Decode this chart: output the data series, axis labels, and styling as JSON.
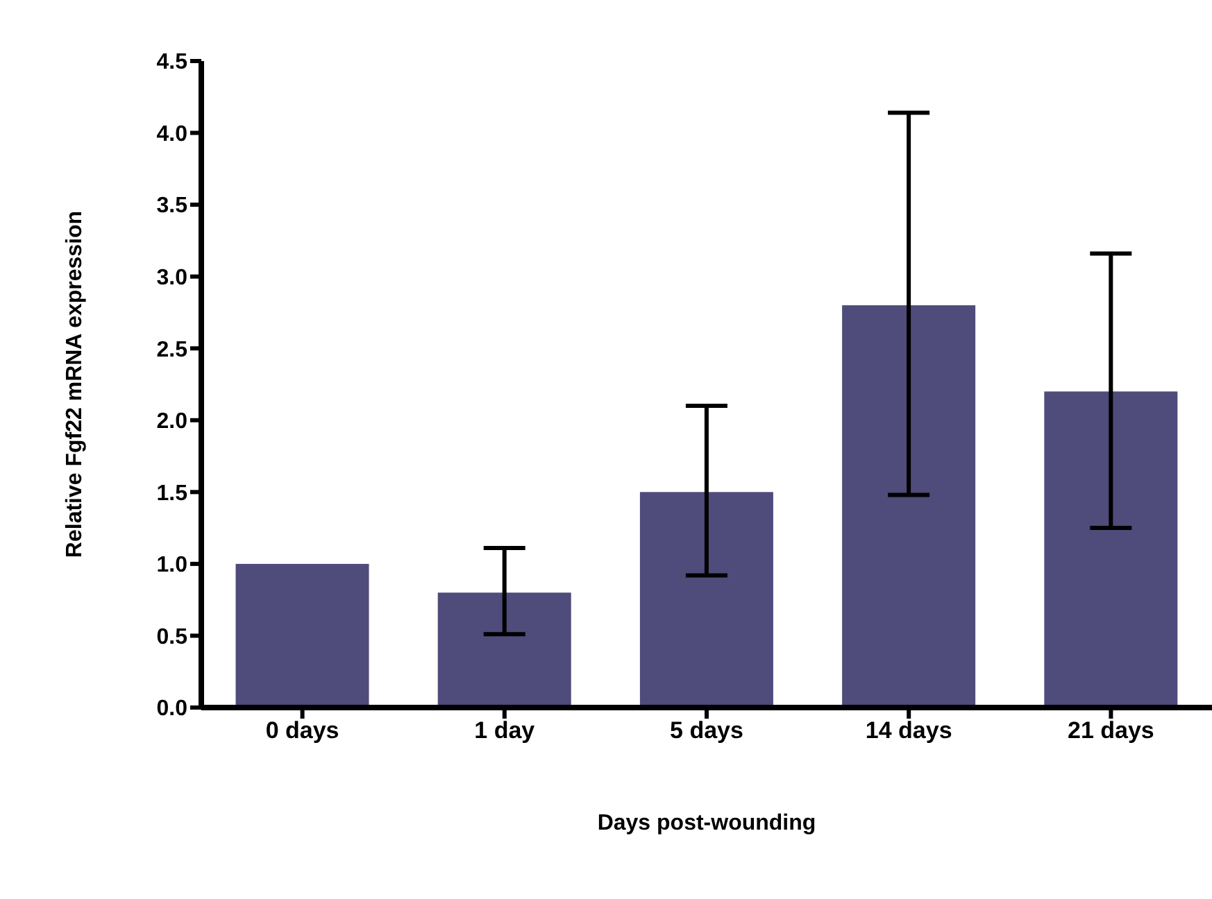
{
  "chart_data": {
    "type": "bar",
    "xlabel": "Days post-wounding",
    "ylabel": "Relative Fgf22 mRNA expression",
    "categories": [
      "0 days",
      "1 day",
      "5 days",
      "14 days",
      "21 days"
    ],
    "values": [
      1.0,
      0.8,
      1.5,
      2.8,
      2.2
    ],
    "errors": [
      null,
      [
        0.51,
        1.11
      ],
      [
        0.92,
        2.1
      ],
      [
        1.48,
        4.14
      ],
      [
        1.25,
        3.16
      ]
    ],
    "color": "#4f4b7a",
    "ylim": [
      0,
      4.5
    ],
    "yticks": [
      {
        "value": 0,
        "label": "0.0"
      },
      {
        "value": 0.5,
        "label": "0.5"
      },
      {
        "value": 1,
        "label": "1.0"
      },
      {
        "value": 1.5,
        "label": "1.5"
      },
      {
        "value": 2,
        "label": "2.0"
      },
      {
        "value": 2.5,
        "label": "2.5"
      },
      {
        "value": 3,
        "label": "3.0"
      },
      {
        "value": 3.5,
        "label": "3.5"
      },
      {
        "value": 4,
        "label": "4.0"
      },
      {
        "value": 4.5,
        "label": "4.5"
      }
    ],
    "grid": false,
    "legend": false
  }
}
